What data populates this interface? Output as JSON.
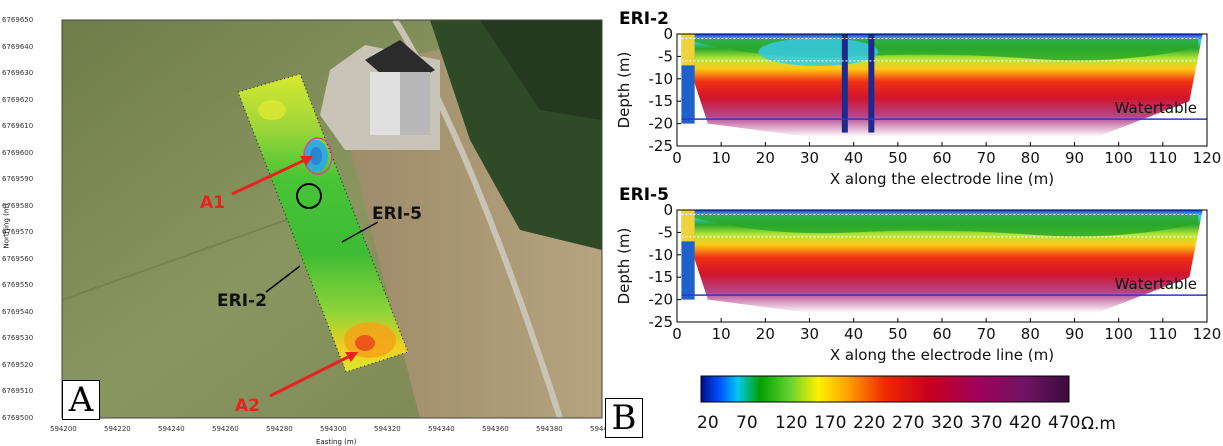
{
  "panel_a": {
    "letter": "A",
    "xlabel": "Easting (m)",
    "ylabel": "Northing (m)",
    "x_ticks": [
      "594200",
      "594220",
      "594240",
      "594260",
      "594280",
      "594300",
      "594320",
      "594340",
      "594360",
      "594380",
      "594400"
    ],
    "y_ticks": [
      "6769650",
      "6769640",
      "6769630",
      "6769620",
      "6769610",
      "6769600",
      "6769590",
      "6769580",
      "6769570",
      "6769560",
      "6769550",
      "6769540",
      "6769530",
      "6769520",
      "6769510",
      "6769500"
    ],
    "labels": {
      "a1": "A1",
      "a2": "A2",
      "eri5": "ERI-5",
      "eri2": "ERI-2"
    },
    "colors": {
      "annotation_red": "#e8231e",
      "field": "#7f8f56",
      "grid_green": "#32c832"
    }
  },
  "panel_b": {
    "letter": "B",
    "colorbar_ticks": [
      "20",
      "70",
      "120",
      "170",
      "220",
      "270",
      "320",
      "370",
      "420",
      "470"
    ],
    "colorbar_unit": "Ω.m"
  },
  "chart_data": [
    {
      "type": "heatmap",
      "title": "ERI-2",
      "xlabel": "X along the electrode line (m)",
      "ylabel": "Depth (m)",
      "x_ticks": [
        "0",
        "10",
        "20",
        "30",
        "40",
        "50",
        "60",
        "70",
        "80",
        "90",
        "100",
        "110",
        "120"
      ],
      "y_ticks": [
        "0",
        "-5",
        "-10",
        "-15",
        "-20",
        "-25"
      ],
      "xlim": [
        0,
        120
      ],
      "ylim": [
        -25,
        0
      ],
      "annotation": "Watertable",
      "watertable_depth": -19
    },
    {
      "type": "heatmap",
      "title": "ERI-5",
      "xlabel": "X along the electrode line (m)",
      "ylabel": "Depth (m)",
      "x_ticks": [
        "0",
        "10",
        "20",
        "30",
        "40",
        "50",
        "60",
        "70",
        "80",
        "90",
        "100",
        "110",
        "120"
      ],
      "y_ticks": [
        "0",
        "-5",
        "-10",
        "-15",
        "-20",
        "-25"
      ],
      "xlim": [
        0,
        120
      ],
      "ylim": [
        -25,
        0
      ],
      "annotation": "Watertable",
      "watertable_depth": -19
    }
  ]
}
